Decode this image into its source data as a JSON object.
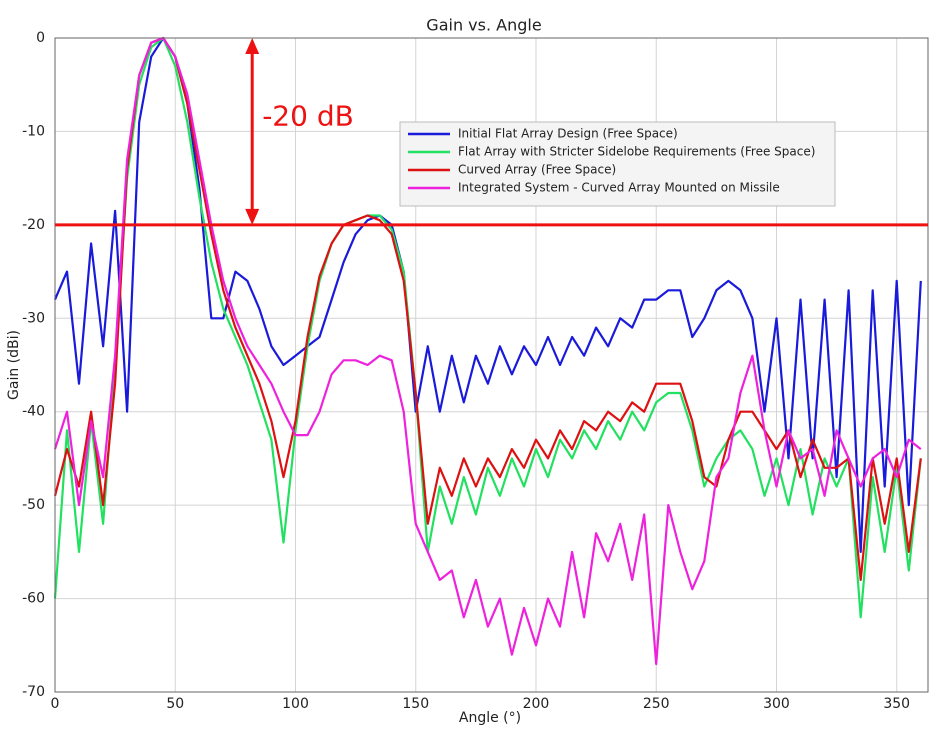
{
  "chart_data": {
    "type": "line",
    "title": "Gain vs. Angle",
    "x_label": "Angle (°)",
    "y_label": "Gain (dBi)",
    "xlim": [
      0,
      363
    ],
    "ylim": [
      -70,
      0
    ],
    "xticks": [
      0,
      50,
      100,
      150,
      200,
      250,
      300,
      350
    ],
    "yticks": [
      0,
      -10,
      -20,
      -30,
      -40,
      -50,
      -60,
      -70
    ],
    "grid": true,
    "legend": "upper right",
    "reference_line": {
      "value": -20,
      "color": "#ee1111"
    },
    "annotation": {
      "text": "-20 dB",
      "x": 82,
      "y_from": 0,
      "y_to": -20,
      "color": "#ee1111"
    },
    "x": [
      0,
      5,
      10,
      15,
      20,
      25,
      30,
      35,
      40,
      45,
      50,
      55,
      60,
      65,
      70,
      75,
      80,
      85,
      90,
      95,
      100,
      105,
      110,
      115,
      120,
      125,
      130,
      135,
      140,
      145,
      150,
      155,
      160,
      165,
      170,
      175,
      180,
      185,
      190,
      195,
      200,
      205,
      210,
      215,
      220,
      225,
      230,
      235,
      240,
      245,
      250,
      255,
      260,
      265,
      270,
      275,
      280,
      285,
      290,
      295,
      300,
      305,
      310,
      315,
      320,
      325,
      330,
      335,
      340,
      345,
      350,
      355,
      360
    ],
    "series": [
      {
        "name": "Initial Flat Array Design (Free Space)",
        "color": "#1a1adb",
        "values": [
          -28,
          -25,
          -37,
          -22,
          -33,
          -18.5,
          -40,
          -9,
          -2,
          0,
          -2,
          -7,
          -16,
          -30,
          -30,
          -25,
          -26,
          -29,
          -33,
          -35,
          -34,
          -33,
          -32,
          -28,
          -24,
          -21,
          -19.5,
          -19,
          -20,
          -25,
          -40,
          -33,
          -40,
          -34,
          -39,
          -34,
          -37,
          -33,
          -36,
          -33,
          -35,
          -32,
          -35,
          -32,
          -34,
          -31,
          -33,
          -30,
          -31,
          -28,
          -28,
          -27,
          -27,
          -32,
          -30,
          -27,
          -26,
          -27,
          -30,
          -40,
          -30,
          -45,
          -28,
          -45,
          -28,
          -47,
          -27,
          -55,
          -27,
          -48,
          -26,
          -50,
          -26
        ]
      },
      {
        "name": "Flat Array with Stricter Sidelobe Requirements (Free Space)",
        "color": "#22e060",
        "values": [
          -60,
          -42,
          -55,
          -41,
          -52,
          -35,
          -15,
          -5,
          -1,
          0,
          -3,
          -9,
          -17,
          -24,
          -29,
          -32,
          -35,
          -39,
          -43,
          -54,
          -42,
          -33,
          -26,
          -22,
          -20,
          -19.5,
          -19,
          -19,
          -20.5,
          -25,
          -38,
          -55,
          -48,
          -52,
          -47,
          -51,
          -46,
          -49,
          -45,
          -48,
          -44,
          -47,
          -43,
          -45,
          -42,
          -44,
          -41,
          -43,
          -40,
          -42,
          -39,
          -38,
          -38,
          -42,
          -48,
          -45,
          -43,
          -42,
          -44,
          -49,
          -45,
          -50,
          -44,
          -51,
          -45,
          -48,
          -45,
          -62,
          -47,
          -55,
          -46,
          -57,
          -45
        ]
      },
      {
        "name": "Curved Array (Free Space)",
        "color": "#dd1111",
        "values": [
          -49,
          -44,
          -48,
          -40,
          -50,
          -37,
          -14,
          -4,
          -0.5,
          0,
          -2,
          -7,
          -14,
          -21,
          -27,
          -31,
          -34,
          -37,
          -41,
          -47,
          -41,
          -32,
          -25.5,
          -22,
          -20,
          -19.5,
          -19,
          -19.5,
          -21,
          -26,
          -38,
          -52,
          -46,
          -49,
          -45,
          -48,
          -45,
          -47,
          -44,
          -46,
          -43,
          -45,
          -42,
          -44,
          -41,
          -42,
          -40,
          -41,
          -39,
          -40,
          -37,
          -37,
          -37,
          -41,
          -47,
          -48,
          -43,
          -40,
          -40,
          -42,
          -44,
          -42,
          -47,
          -43,
          -46,
          -46,
          -45,
          -58,
          -45,
          -52,
          -45,
          -55,
          -45
        ]
      },
      {
        "name": "Integrated System - Curved Array Mounted on Missile",
        "color": "#ee22dd",
        "values": [
          -44,
          -40,
          -50,
          -41,
          -47,
          -34,
          -13,
          -4,
          -0.5,
          0,
          -2,
          -6,
          -13,
          -20,
          -26,
          -30,
          -33,
          -35,
          -37,
          -40,
          -42.5,
          -42.5,
          -40,
          -36,
          -34.5,
          -34.5,
          -35,
          -34,
          -34.5,
          -40,
          -52,
          -55,
          -58,
          -57,
          -62,
          -58,
          -63,
          -60,
          -66,
          -61,
          -65,
          -60,
          -63,
          -55,
          -62,
          -53,
          -56,
          -52,
          -58,
          -51,
          -67,
          -50,
          -55,
          -59,
          -56,
          -47,
          -45,
          -38,
          -34,
          -42,
          -48,
          -42,
          -45,
          -44,
          -49,
          -42,
          -45,
          -48,
          -45,
          -44,
          -47,
          -43,
          -44
        ]
      }
    ]
  }
}
